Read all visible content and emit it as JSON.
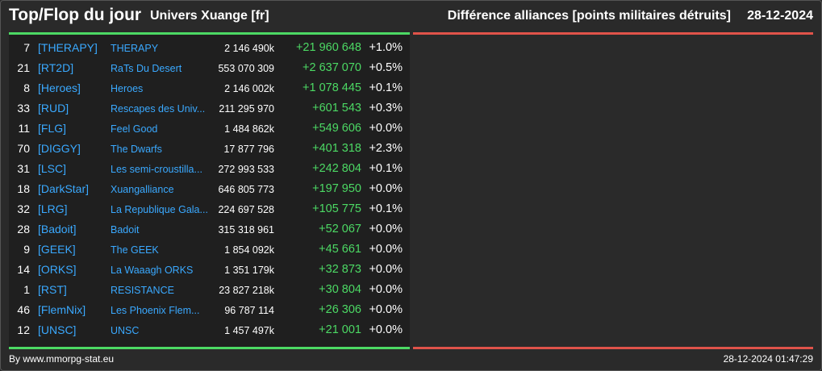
{
  "header": {
    "title": "Top/Flop du jour",
    "universe": "Univers Xuange [fr]",
    "metric": "Différence alliances [points militaires détruits]",
    "date": "28-12-2024"
  },
  "colors": {
    "positive": "#4cd964",
    "negative": "#e0534a",
    "link": "#3aa9ff"
  },
  "rows": [
    {
      "rank": "7",
      "tag": "[THERAPY]",
      "name": "THERAPY",
      "points": "2 146 490k",
      "diff": "+21 960 648",
      "pct": "+1.0%"
    },
    {
      "rank": "21",
      "tag": "[RT2D]",
      "name": "RaTs Du Desert",
      "points": "553 070 309",
      "diff": "+2 637 070",
      "pct": "+0.5%"
    },
    {
      "rank": "8",
      "tag": "[Heroes]",
      "name": "Heroes",
      "points": "2 146 002k",
      "diff": "+1 078 445",
      "pct": "+0.1%"
    },
    {
      "rank": "33",
      "tag": "[RUD]",
      "name": "Rescapes des Univ...",
      "points": "211 295 970",
      "diff": "+601 543",
      "pct": "+0.3%"
    },
    {
      "rank": "11",
      "tag": "[FLG]",
      "name": "Feel Good",
      "points": "1 484 862k",
      "diff": "+549 606",
      "pct": "+0.0%"
    },
    {
      "rank": "70",
      "tag": "[DIGGY]",
      "name": "The Dwarfs",
      "points": "17 877 796",
      "diff": "+401 318",
      "pct": "+2.3%"
    },
    {
      "rank": "31",
      "tag": "[LSC]",
      "name": "Les semi-croustilla...",
      "points": "272 993 533",
      "diff": "+242 804",
      "pct": "+0.1%"
    },
    {
      "rank": "18",
      "tag": "[DarkStar]",
      "name": "Xuangalliance",
      "points": "646 805 773",
      "diff": "+197 950",
      "pct": "+0.0%"
    },
    {
      "rank": "32",
      "tag": "[LRG]",
      "name": "La Republique Gala...",
      "points": "224 697 528",
      "diff": "+105 775",
      "pct": "+0.1%"
    },
    {
      "rank": "28",
      "tag": "[Badoit]",
      "name": "Badoit",
      "points": "315 318 961",
      "diff": "+52 067",
      "pct": "+0.0%"
    },
    {
      "rank": "9",
      "tag": "[GEEK]",
      "name": "The GEEK",
      "points": "1 854 092k",
      "diff": "+45 661",
      "pct": "+0.0%"
    },
    {
      "rank": "14",
      "tag": "[ORKS]",
      "name": "La Waaagh ORKS",
      "points": "1 351 179k",
      "diff": "+32 873",
      "pct": "+0.0%"
    },
    {
      "rank": "1",
      "tag": "[RST]",
      "name": "RESISTANCE",
      "points": "23 827 218k",
      "diff": "+30 804",
      "pct": "+0.0%"
    },
    {
      "rank": "46",
      "tag": "[FlemNix]",
      "name": "Les Phoenix Flem...",
      "points": "96 787 114",
      "diff": "+26 306",
      "pct": "+0.0%"
    },
    {
      "rank": "12",
      "tag": "[UNSC]",
      "name": "UNSC",
      "points": "1 457 497k",
      "diff": "+21 001",
      "pct": "+0.0%"
    }
  ],
  "footer": {
    "credit": "By www.mmorpg-stat.eu",
    "timestamp": "28-12-2024 01:47:29"
  }
}
